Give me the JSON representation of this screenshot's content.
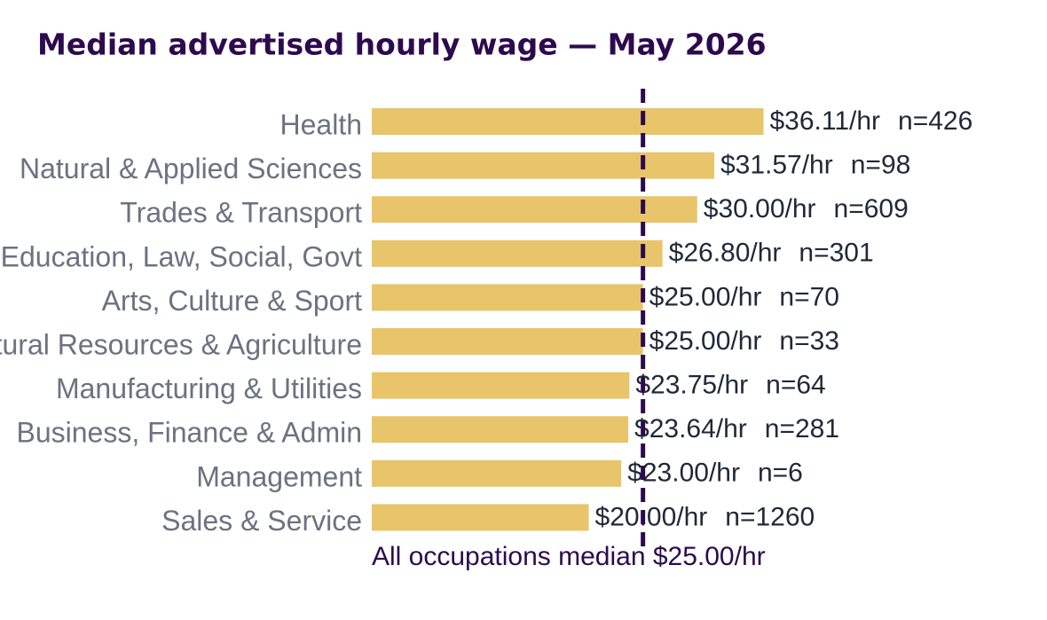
{
  "chart_data": {
    "type": "bar",
    "orientation": "horizontal",
    "title": "Median advertised hourly wage — May 2026",
    "categories": [
      "Health",
      "Natural & Applied Sciences",
      "Trades & Transport",
      "Education, Law, Social, Govt",
      "Arts, Culture & Sport",
      "Natural Resources & Agriculture",
      "Manufacturing & Utilities",
      "Business, Finance & Admin",
      "Management",
      "Sales & Service"
    ],
    "values": [
      36.11,
      31.57,
      30.0,
      26.8,
      25.0,
      25.0,
      23.75,
      23.64,
      23.0,
      20.0
    ],
    "value_labels": [
      "$36.11/hr",
      "$31.57/hr",
      "$30.00/hr",
      "$26.80/hr",
      "$25.00/hr",
      "$25.00/hr",
      "$23.75/hr",
      "$23.64/hr",
      "$23.00/hr",
      "$20.00/hr"
    ],
    "count_labels": [
      "n=426",
      "n=98",
      "n=609",
      "n=301",
      "n=70",
      "n=33",
      "n=64",
      "n=281",
      "n=6",
      "n=1260"
    ],
    "color": "#e8c46a",
    "xlim": [
      0,
      62
    ],
    "median": 25.0,
    "median_label": "All occupations median $25.00/hr",
    "median_color": "#2d0a4e"
  }
}
